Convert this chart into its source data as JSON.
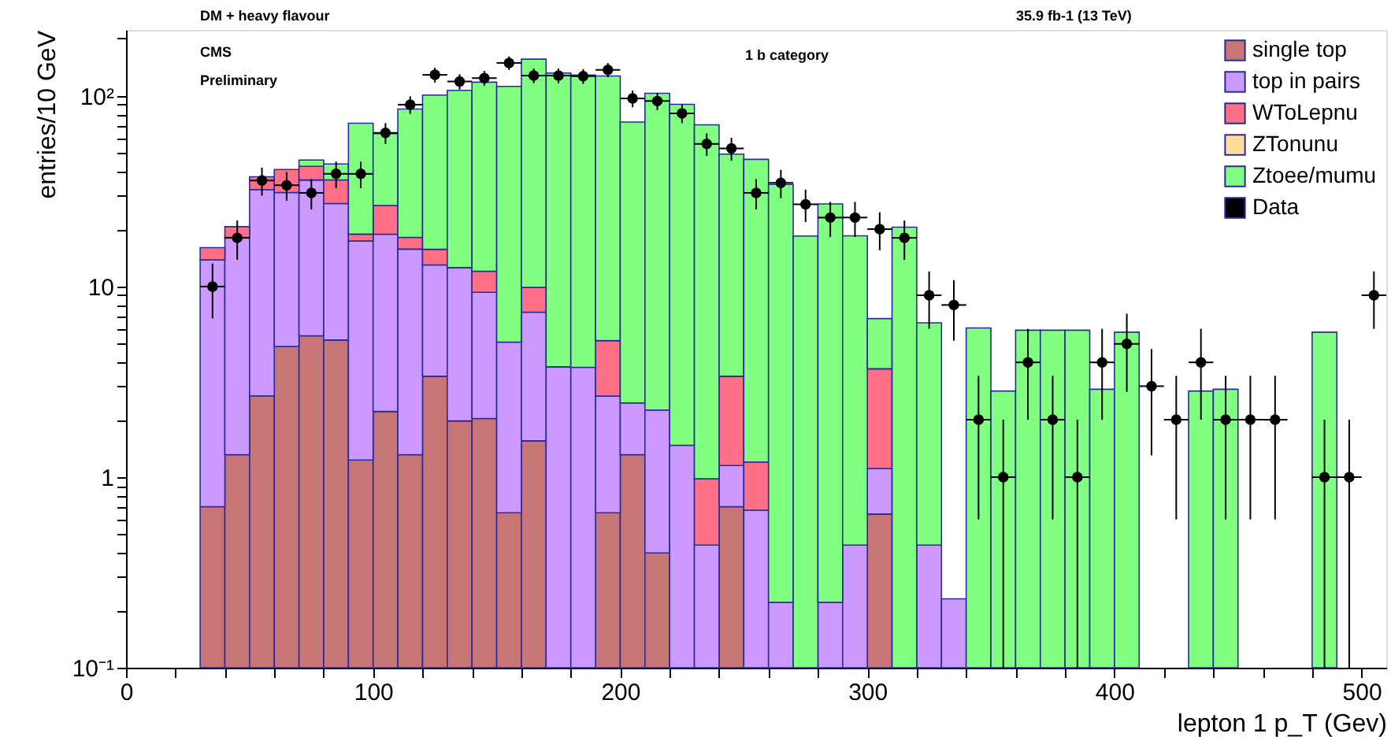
{
  "chart_data": {
    "type": "bar",
    "title": "DM + heavy flavour",
    "xlabel": "lepton 1 p_T (Gev)",
    "ylabel": "entries/10 GeV",
    "annotations": [
      "35.9 fb-1 (13 TeV)",
      "CMS",
      "Preliminary",
      "1 b category"
    ],
    "x": [
      35,
      45,
      55,
      65,
      75,
      85,
      95,
      105,
      115,
      125,
      135,
      145,
      155,
      165,
      175,
      185,
      195,
      205,
      215,
      225,
      235,
      245,
      255,
      265,
      275,
      285,
      295,
      305,
      315,
      325,
      335,
      345,
      355,
      365,
      375,
      385,
      395,
      405,
      415,
      425,
      435,
      445,
      455,
      465,
      475,
      485
    ],
    "stacked": true,
    "log": "y",
    "legend": "top right",
    "grid": false,
    "xlim": [
      0,
      510
    ],
    "ylim": [
      0.1,
      222
    ],
    "xticks": [
      0,
      {
        "value": 20,
        "label": null
      },
      {
        "value": 40,
        "label": null
      },
      {
        "value": 60,
        "label": null
      },
      {
        "value": 80,
        "label": null
      },
      100,
      {
        "value": 120,
        "label": null
      },
      {
        "value": 140,
        "label": null
      },
      {
        "value": 160,
        "label": null
      },
      {
        "value": 180,
        "label": null
      },
      200,
      {
        "value": 220,
        "label": null
      },
      {
        "value": 240,
        "label": null
      },
      {
        "value": 260,
        "label": null
      },
      {
        "value": 280,
        "label": null
      },
      300,
      {
        "value": 320,
        "label": null
      },
      {
        "value": 340,
        "label": null
      },
      {
        "value": 360,
        "label": null
      },
      {
        "value": 380,
        "label": null
      },
      400,
      {
        "value": 420,
        "label": null
      },
      {
        "value": 440,
        "label": null
      },
      {
        "value": 460,
        "label": null
      },
      {
        "value": 480,
        "label": null
      },
      500
    ],
    "yticks": [
      {
        "value": 0.1,
        "label": "10⁻¹"
      },
      {
        "value": 0.2,
        "label": null
      },
      {
        "value": 0.3,
        "label": null
      },
      {
        "value": 0.4,
        "label": null
      },
      {
        "value": 0.5,
        "label": null
      },
      {
        "value": 0.6,
        "label": null
      },
      {
        "value": 0.7,
        "label": null
      },
      {
        "value": 0.8,
        "label": null
      },
      {
        "value": 0.9,
        "label": null
      },
      1,
      {
        "value": 2,
        "label": null
      },
      {
        "value": 3,
        "label": null
      },
      {
        "value": 4,
        "label": null
      },
      {
        "value": 5,
        "label": null
      },
      {
        "value": 6,
        "label": null
      },
      {
        "value": 7,
        "label": null
      },
      {
        "value": 8,
        "label": null
      },
      {
        "value": 9,
        "label": null
      },
      10,
      {
        "value": 20,
        "label": null
      },
      {
        "value": 30,
        "label": null
      },
      {
        "value": 40,
        "label": null
      },
      {
        "value": 50,
        "label": null
      },
      {
        "value": 60,
        "label": null
      },
      {
        "value": 70,
        "label": null
      },
      {
        "value": 80,
        "label": null
      },
      {
        "value": 90,
        "label": null
      },
      {
        "value": 100,
        "label": "10²"
      },
      {
        "value": 200,
        "label": null
      }
    ],
    "series": [
      {
        "name": "single top",
        "color": "#c77575",
        "values": [
          0.7,
          1.31,
          2.67,
          4.85,
          5.51,
          5.24,
          1.23,
          2.21,
          1.31,
          3.38,
          1.97,
          2.03,
          0.65,
          1.55,
          null,
          null,
          0.65,
          1.31,
          0.4,
          null,
          null,
          0.7,
          null,
          null,
          null,
          null,
          null,
          0.64,
          null,
          null,
          null,
          null,
          null,
          null,
          null,
          null,
          null,
          null,
          null,
          null,
          null,
          null,
          null,
          null,
          null,
          null
        ]
      },
      {
        "name": "top in pairs",
        "color": "#cc99ff",
        "values": [
          13.1,
          16.8,
          29.6,
          26.3,
          30.7,
          22.0,
          16.1,
          16.6,
          14.4,
          9.6,
          10.6,
          7.3,
          4.46,
          5.78,
          3.79,
          3.77,
          2.01,
          1.14,
          1.85,
          1.47,
          0.44,
          0.45,
          0.67,
          0.22,
          null,
          0.22,
          0.44,
          0.47,
          null,
          0.44,
          0.23,
          null,
          null,
          null,
          null,
          null,
          null,
          null,
          null,
          null,
          null,
          null,
          null,
          null,
          null,
          null
        ]
      },
      {
        "name": "WToLepnu",
        "color": "#ff6f85",
        "values": [
          2.2,
          2.5,
          5.4,
          10.0,
          6.5,
          9.0,
          1.5,
          7.8,
          2.4,
          2.7,
          null,
          2.7,
          null,
          2.55,
          null,
          null,
          2.54,
          null,
          null,
          null,
          0.54,
          2.23,
          0.53,
          null,
          null,
          null,
          null,
          2.59,
          null,
          null,
          null,
          null,
          null,
          null,
          null,
          null,
          null,
          null,
          null,
          null,
          null,
          null,
          null,
          null,
          null,
          null
        ]
      },
      {
        "name": "ZTonunu",
        "color": "#ffdd99",
        "values": [
          null,
          null,
          null,
          null,
          null,
          null,
          null,
          null,
          null,
          null,
          null,
          null,
          null,
          null,
          null,
          null,
          null,
          null,
          null,
          null,
          null,
          null,
          null,
          null,
          null,
          null,
          null,
          null,
          null,
          null,
          null,
          null,
          null,
          null,
          null,
          null,
          null,
          null,
          null,
          null,
          null,
          null,
          null,
          null,
          null,
          null
        ]
      },
      {
        "name": "Ztoee/mumu",
        "color": "#80ff80",
        "values": [
          null,
          null,
          null,
          null,
          3.4,
          7.7,
          53.1,
          36.8,
          67.2,
          85.3,
          94.4,
          106,
          107,
          146,
          128,
          125,
          122,
          70.5,
          101,
          88.9,
          69.6,
          46.1,
          45.3,
          34.1,
          18.4,
          26.9,
          18.0,
          3.09,
          20.5,
          6.01,
          null,
          6.06,
          2.83,
          5.9,
          5.9,
          5.9,
          2.89,
          5.76,
          null,
          null,
          2.83,
          2.89,
          null,
          null,
          null,
          5.76
        ]
      },
      {
        "name": "Data",
        "type": "scatter",
        "marker": "circle",
        "color": "#000000",
        "x": [
          35,
          45,
          55,
          65,
          75,
          85,
          95,
          105,
          115,
          125,
          135,
          145,
          155,
          165,
          175,
          185,
          195,
          205,
          215,
          225,
          235,
          245,
          255,
          265,
          275,
          285,
          295,
          305,
          315,
          325,
          335,
          345,
          355,
          365,
          375,
          385,
          395,
          405,
          415,
          425,
          435,
          445,
          455,
          465,
          475,
          485,
          495,
          505
        ],
        "values": [
          10,
          18,
          36,
          34,
          31,
          39,
          39,
          64,
          90,
          129,
          119,
          124,
          149,
          128,
          128,
          127,
          137,
          97,
          94,
          81,
          56,
          53,
          31,
          35,
          27,
          23,
          23,
          20,
          18,
          9,
          8,
          2,
          1,
          4,
          2,
          1,
          4,
          5,
          3,
          2,
          4,
          2,
          2,
          2,
          null,
          1,
          1,
          9
        ],
        "errors": [
          3.2,
          4.2,
          6,
          5.8,
          5.6,
          6.2,
          6.2,
          8,
          9.5,
          11.4,
          10.9,
          11.1,
          12.2,
          11.3,
          11.3,
          11.3,
          11.7,
          9.8,
          9.7,
          9,
          7.5,
          7.3,
          5.6,
          5.9,
          5.2,
          4.8,
          4.8,
          4.5,
          4.2,
          3,
          2.8,
          1.4,
          [
            0.1,
            2
          ],
          2,
          1.4,
          [
            0.1,
            2
          ],
          2,
          2.2,
          1.7,
          1.4,
          2,
          1.4,
          1.4,
          1.4,
          null,
          [
            0.1,
            2
          ],
          [
            0.1,
            2
          ],
          3
        ],
        "xerrors": [
          5,
          5,
          5,
          5,
          5,
          5,
          5,
          5,
          5,
          5,
          5,
          5,
          5,
          5,
          5,
          5,
          5,
          5,
          5,
          5,
          5,
          5,
          5,
          5,
          5,
          5,
          5,
          5,
          5,
          5,
          5,
          5,
          5,
          5,
          5,
          5,
          5,
          5,
          5,
          5,
          5,
          5,
          5,
          5,
          null,
          5,
          5,
          5
        ]
      }
    ]
  }
}
